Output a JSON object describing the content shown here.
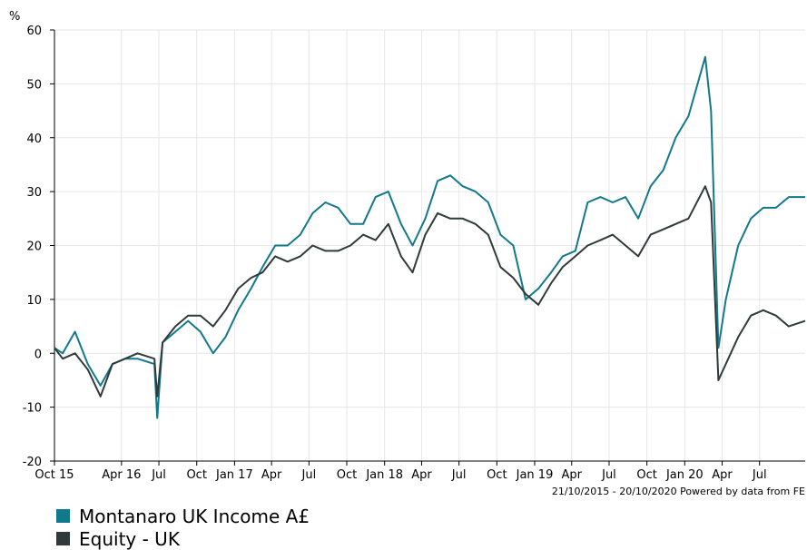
{
  "chart_data": {
    "type": "line",
    "unit": "%",
    "ylim": [
      -20,
      60
    ],
    "y_ticks": [
      "60",
      "50",
      "40",
      "30",
      "20",
      "10",
      "0",
      "-10",
      "-20"
    ],
    "x_ticks": [
      "Oct 15",
      "Apr 16",
      "Jul",
      "Oct",
      "Jan 17",
      "Apr",
      "Jul",
      "Oct",
      "Jan 18",
      "Apr",
      "Jul",
      "Oct",
      "Jan 19",
      "Apr",
      "Jul",
      "Oct",
      "Jan 20",
      "Apr",
      "Jul"
    ],
    "x_tick_dates": [
      "2015-10-21",
      "2016-04-01",
      "2016-07-01",
      "2016-10-01",
      "2017-01-01",
      "2017-04-01",
      "2017-07-01",
      "2017-10-01",
      "2018-01-01",
      "2018-04-01",
      "2018-07-01",
      "2018-10-01",
      "2019-01-01",
      "2019-04-01",
      "2019-07-01",
      "2019-10-01",
      "2020-01-01",
      "2020-04-01",
      "2020-07-01"
    ],
    "x_range": [
      "2015-10-21",
      "2020-10-20"
    ],
    "grid": true,
    "legend_position": "bottom",
    "footnote": "21/10/2015 - 20/10/2020 Powered by data from FE",
    "series": [
      {
        "name": "Montanaro UK Income A£",
        "color": "#12798a",
        "x": [
          "2015-10-21",
          "2015-11-10",
          "2015-12-10",
          "2016-01-10",
          "2016-02-10",
          "2016-03-10",
          "2016-04-10",
          "2016-05-10",
          "2016-06-20",
          "2016-06-27",
          "2016-07-10",
          "2016-08-10",
          "2016-09-10",
          "2016-10-10",
          "2016-11-10",
          "2016-12-10",
          "2017-01-10",
          "2017-02-10",
          "2017-03-10",
          "2017-04-10",
          "2017-05-10",
          "2017-06-10",
          "2017-07-10",
          "2017-08-10",
          "2017-09-10",
          "2017-10-10",
          "2017-11-10",
          "2017-12-10",
          "2018-01-10",
          "2018-02-10",
          "2018-03-10",
          "2018-04-10",
          "2018-05-10",
          "2018-06-10",
          "2018-07-10",
          "2018-08-10",
          "2018-09-10",
          "2018-10-10",
          "2018-11-10",
          "2018-12-10",
          "2019-01-10",
          "2019-02-10",
          "2019-03-10",
          "2019-04-10",
          "2019-05-10",
          "2019-06-10",
          "2019-07-10",
          "2019-08-10",
          "2019-09-10",
          "2019-10-10",
          "2019-11-10",
          "2019-12-10",
          "2020-01-10",
          "2020-02-20",
          "2020-03-05",
          "2020-03-23",
          "2020-04-10",
          "2020-05-10",
          "2020-06-10",
          "2020-07-10",
          "2020-08-10",
          "2020-09-10",
          "2020-10-20"
        ],
        "y": [
          1,
          0,
          4,
          -2,
          -6,
          -2,
          -1,
          -1,
          -2,
          -12,
          2,
          4,
          6,
          4,
          0,
          3,
          8,
          12,
          16,
          20,
          20,
          22,
          26,
          28,
          27,
          24,
          24,
          29,
          30,
          24,
          20,
          25,
          32,
          33,
          31,
          30,
          28,
          22,
          20,
          10,
          12,
          15,
          18,
          19,
          28,
          29,
          28,
          29,
          25,
          31,
          34,
          40,
          44,
          55,
          45,
          1,
          10,
          20,
          25,
          27,
          27,
          29,
          29
        ]
      },
      {
        "name": "Equity - UK",
        "color": "#2f3b3b",
        "x": [
          "2015-10-21",
          "2015-11-10",
          "2015-12-10",
          "2016-01-10",
          "2016-02-10",
          "2016-03-10",
          "2016-04-10",
          "2016-05-10",
          "2016-06-20",
          "2016-06-27",
          "2016-07-10",
          "2016-08-10",
          "2016-09-10",
          "2016-10-10",
          "2016-11-10",
          "2016-12-10",
          "2017-01-10",
          "2017-02-10",
          "2017-03-10",
          "2017-04-10",
          "2017-05-10",
          "2017-06-10",
          "2017-07-10",
          "2017-08-10",
          "2017-09-10",
          "2017-10-10",
          "2017-11-10",
          "2017-12-10",
          "2018-01-10",
          "2018-02-10",
          "2018-03-10",
          "2018-04-10",
          "2018-05-10",
          "2018-06-10",
          "2018-07-10",
          "2018-08-10",
          "2018-09-10",
          "2018-10-10",
          "2018-11-10",
          "2018-12-10",
          "2019-01-10",
          "2019-02-10",
          "2019-03-10",
          "2019-04-10",
          "2019-05-10",
          "2019-06-10",
          "2019-07-10",
          "2019-08-10",
          "2019-09-10",
          "2019-10-10",
          "2019-11-10",
          "2019-12-10",
          "2020-01-10",
          "2020-02-20",
          "2020-03-05",
          "2020-03-23",
          "2020-04-10",
          "2020-05-10",
          "2020-06-10",
          "2020-07-10",
          "2020-08-10",
          "2020-09-10",
          "2020-10-20"
        ],
        "y": [
          1,
          -1,
          0,
          -3,
          -8,
          -2,
          -1,
          0,
          -1,
          -8,
          2,
          5,
          7,
          7,
          5,
          8,
          12,
          14,
          15,
          18,
          17,
          18,
          20,
          19,
          19,
          20,
          22,
          21,
          24,
          18,
          15,
          22,
          26,
          25,
          25,
          24,
          22,
          16,
          14,
          11,
          9,
          13,
          16,
          18,
          20,
          21,
          22,
          20,
          18,
          22,
          23,
          24,
          25,
          31,
          28,
          -5,
          -2,
          3,
          7,
          8,
          7,
          5,
          6
        ]
      }
    ]
  }
}
